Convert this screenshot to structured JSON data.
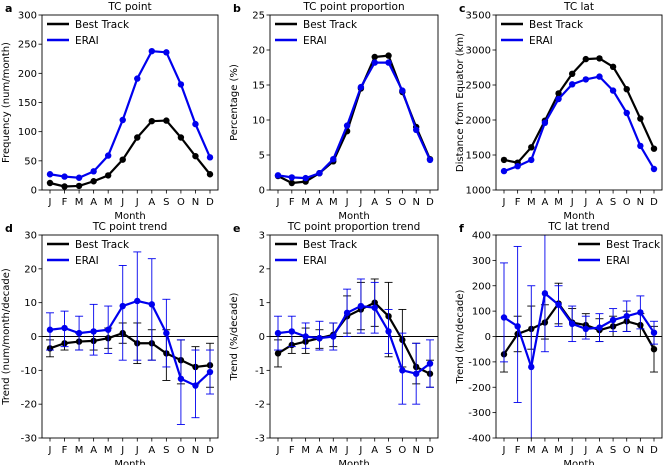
{
  "colors": {
    "best": "#000000",
    "erai": "#0000ee"
  },
  "chart_data": [
    {
      "id": "a",
      "panel_label": "a",
      "type": "line",
      "title": "TC point",
      "xlabel": "Month",
      "ylabel": "Frequency (num/month)",
      "categories": [
        "J",
        "F",
        "M",
        "A",
        "M",
        "J",
        "J",
        "A",
        "S",
        "O",
        "N",
        "D"
      ],
      "ylim": [
        0,
        300
      ],
      "yticks": [
        0,
        50,
        100,
        150,
        200,
        250,
        300
      ],
      "legend": "top-left",
      "series": [
        {
          "name": "Best Track",
          "values": [
            12,
            6,
            7,
            15,
            25,
            52,
            90,
            118,
            119,
            90,
            58,
            27
          ]
        },
        {
          "name": "ERAI",
          "values": [
            27,
            23,
            21,
            32,
            59,
            120,
            191,
            238,
            236,
            181,
            113,
            56
          ]
        }
      ]
    },
    {
      "id": "b",
      "panel_label": "b",
      "type": "line",
      "title": "TC point proportion",
      "xlabel": "Month",
      "ylabel": "Percentage (%)",
      "categories": [
        "J",
        "F",
        "M",
        "A",
        "M",
        "J",
        "J",
        "A",
        "S",
        "O",
        "N",
        "D"
      ],
      "ylim": [
        0,
        25
      ],
      "yticks": [
        0,
        5,
        10,
        15,
        20,
        25
      ],
      "legend": "top-left",
      "series": [
        {
          "name": "Best Track",
          "values": [
            2.0,
            1.0,
            1.2,
            2.4,
            4.1,
            8.4,
            14.5,
            19.0,
            19.2,
            14.0,
            9.0,
            4.4
          ]
        },
        {
          "name": "ERAI",
          "values": [
            2.1,
            1.8,
            1.7,
            2.4,
            4.4,
            9.2,
            14.7,
            18.2,
            18.2,
            14.2,
            8.6,
            4.3
          ]
        }
      ]
    },
    {
      "id": "c",
      "panel_label": "c",
      "type": "line",
      "title": "TC lat",
      "xlabel": "Month",
      "ylabel": "Distance from Equator (km)",
      "categories": [
        "J",
        "F",
        "M",
        "A",
        "M",
        "J",
        "J",
        "A",
        "S",
        "O",
        "N",
        "D"
      ],
      "ylim": [
        1000,
        3500
      ],
      "yticks": [
        1000,
        1500,
        2000,
        2500,
        3000,
        3500
      ],
      "legend": "top-left",
      "series": [
        {
          "name": "Best Track",
          "values": [
            1430,
            1390,
            1610,
            1990,
            2380,
            2660,
            2870,
            2880,
            2760,
            2440,
            2020,
            1590
          ]
        },
        {
          "name": "ERAI",
          "values": [
            1270,
            1340,
            1430,
            1960,
            2300,
            2510,
            2580,
            2620,
            2420,
            2100,
            1630,
            1300
          ]
        }
      ]
    },
    {
      "id": "d",
      "panel_label": "d",
      "type": "line",
      "title": "TC point trend",
      "xlabel": "Month",
      "ylabel": "Trend (num/month/decade)",
      "categories": [
        "J",
        "F",
        "M",
        "A",
        "M",
        "J",
        "J",
        "A",
        "S",
        "O",
        "N",
        "D"
      ],
      "ylim": [
        -30,
        30
      ],
      "yticks": [
        -30,
        -20,
        -10,
        0,
        10,
        20,
        30
      ],
      "legend": "top-left",
      "series": [
        {
          "name": "Best Track",
          "values": [
            -3.5,
            -2,
            -1.5,
            -1.3,
            -0.5,
            1,
            -2,
            -2,
            -5,
            -7,
            -9,
            -8.5
          ],
          "error": [
            [
              -6,
              -1
            ],
            [
              -4,
              0
            ],
            [
              -4,
              1
            ],
            [
              -4,
              1.5
            ],
            [
              -3.5,
              2.5
            ],
            [
              -2,
              4
            ],
            [
              -8,
              4
            ],
            [
              -7,
              2
            ],
            [
              -13,
              2
            ],
            [
              -14,
              -1
            ],
            [
              -14,
              -3
            ],
            [
              -15,
              -2
            ]
          ]
        },
        {
          "name": "ERAI",
          "values": [
            2,
            2.5,
            1,
            1.5,
            2,
            9,
            10.5,
            9.5,
            1,
            -12.5,
            -14.5,
            -10.5
          ],
          "error": [
            [
              -4,
              7
            ],
            [
              -3,
              7.5
            ],
            [
              -4,
              6
            ],
            [
              -5.5,
              9.5
            ],
            [
              -5,
              9
            ],
            [
              -7,
              21
            ],
            [
              -7,
              25
            ],
            [
              -7,
              23
            ],
            [
              -9,
              11
            ],
            [
              -26,
              -1
            ],
            [
              -24,
              -4
            ],
            [
              -17,
              -4
            ]
          ]
        }
      ]
    },
    {
      "id": "e",
      "panel_label": "e",
      "type": "line",
      "title": "TC point proportion trend",
      "xlabel": "Month",
      "ylabel": "Trend (%/decade)",
      "categories": [
        "J",
        "F",
        "M",
        "A",
        "M",
        "J",
        "J",
        "A",
        "S",
        "O",
        "N",
        "D"
      ],
      "ylim": [
        -3,
        3
      ],
      "yticks": [
        -3,
        -2,
        -1,
        0,
        1,
        2,
        3
      ],
      "legend": "top-left",
      "series": [
        {
          "name": "Best Track",
          "values": [
            -0.5,
            -0.25,
            -0.15,
            -0.05,
            0.05,
            0.6,
            0.8,
            1.0,
            0.6,
            -0.1,
            -0.9,
            -1.1
          ],
          "error": [
            [
              -0.9,
              -0.1
            ],
            [
              -0.5,
              0
            ],
            [
              -0.5,
              0.25
            ],
            [
              -0.35,
              0.2
            ],
            [
              -0.3,
              0.4
            ],
            [
              0.1,
              1.2
            ],
            [
              0.2,
              1.6
            ],
            [
              0.3,
              1.7
            ],
            [
              -0.6,
              1.6
            ],
            [
              -0.9,
              0.8
            ],
            [
              -1.4,
              -0.2
            ],
            [
              -1.5,
              -0.7
            ]
          ]
        },
        {
          "name": "ERAI",
          "values": [
            0.1,
            0.15,
            0,
            -0.05,
            0,
            0.7,
            0.9,
            0.85,
            0.15,
            -1.0,
            -1.1,
            -0.8
          ],
          "error": [
            [
              -0.4,
              0.6
            ],
            [
              -0.3,
              0.6
            ],
            [
              -0.35,
              0.4
            ],
            [
              -0.4,
              0.45
            ],
            [
              -0.4,
              0.4
            ],
            [
              0,
              1.4
            ],
            [
              0.1,
              1.7
            ],
            [
              0.1,
              1.6
            ],
            [
              -0.5,
              0.8
            ],
            [
              -2,
              0.1
            ],
            [
              -2,
              -0.2
            ],
            [
              -1.5,
              -0.1
            ]
          ]
        }
      ]
    },
    {
      "id": "f",
      "panel_label": "f",
      "type": "line",
      "title": "TC lat trend",
      "xlabel": "Month",
      "ylabel": "Trend (km/decade)",
      "categories": [
        "J",
        "F",
        "M",
        "A",
        "M",
        "J",
        "J",
        "A",
        "S",
        "O",
        "N",
        "D"
      ],
      "ylim": [
        -400,
        400
      ],
      "yticks": [
        -400,
        -300,
        -200,
        -100,
        0,
        100,
        200,
        300,
        400
      ],
      "legend": "top-right",
      "series": [
        {
          "name": "Best Track",
          "values": [
            -70,
            10,
            30,
            55,
            130,
            55,
            45,
            25,
            40,
            60,
            45,
            -50
          ],
          "error": [
            [
              -140,
              0
            ],
            [
              -60,
              80
            ],
            [
              -50,
              120
            ],
            [
              -10,
              125
            ],
            [
              50,
              210
            ],
            [
              0,
              110
            ],
            [
              0,
              90
            ],
            [
              -20,
              70
            ],
            [
              0,
              80
            ],
            [
              20,
              100
            ],
            [
              0,
              90
            ],
            [
              -140,
              40
            ]
          ]
        },
        {
          "name": "ERAI",
          "values": [
            75,
            40,
            -120,
            170,
            125,
            50,
            30,
            35,
            65,
            80,
            95,
            15
          ],
          "error": [
            [
              -100,
              290
            ],
            [
              -260,
              355
            ],
            [
              -430,
              200
            ],
            [
              -60,
              400
            ],
            [
              40,
              200
            ],
            [
              -20,
              120
            ],
            [
              -10,
              80
            ],
            [
              -20,
              90
            ],
            [
              20,
              110
            ],
            [
              20,
              140
            ],
            [
              30,
              160
            ],
            [
              -30,
              60
            ]
          ]
        }
      ]
    }
  ]
}
